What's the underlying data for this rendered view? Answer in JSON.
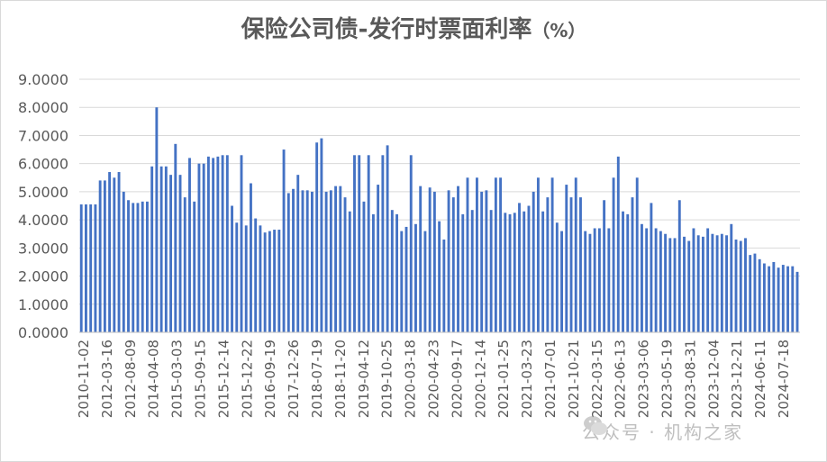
{
  "chart_data": {
    "type": "bar",
    "title": "保险公司债-发行时票面利率",
    "title_unit": "（%）",
    "xlabel": "",
    "ylabel": "",
    "ylim": [
      0,
      9
    ],
    "y_ticks": [
      "9.0000",
      "8.0000",
      "7.0000",
      "6.0000",
      "5.0000",
      "4.0000",
      "3.0000",
      "2.0000",
      "1.0000",
      "0.0000"
    ],
    "x_tick_labels": [
      "2010-11-02",
      "2012-03-16",
      "2012-08-09",
      "2014-04-08",
      "2015-03-03",
      "2015-09-15",
      "2015-12-14",
      "2015-12-22",
      "2016-09-19",
      "2017-12-26",
      "2018-07-19",
      "2018-11-20",
      "2019-04-12",
      "2019-10-25",
      "2020-03-18",
      "2020-04-23",
      "2020-09-17",
      "2020-12-14",
      "2021-01-25",
      "2021-03-23",
      "2021-07-01",
      "2021-10-21",
      "2022-03-15",
      "2022-06-13",
      "2023-03-06",
      "2023-05-19",
      "2023-08-31",
      "2023-12-04",
      "2023-12-21",
      "2024-06-11",
      "2024-07-18"
    ],
    "grid": true,
    "bar_color": "#4472c4",
    "values": [
      4.55,
      4.55,
      4.55,
      4.55,
      5.4,
      5.4,
      5.7,
      5.5,
      5.7,
      5.0,
      4.7,
      4.6,
      4.6,
      4.65,
      4.65,
      5.9,
      8.0,
      5.9,
      5.9,
      5.6,
      6.7,
      5.6,
      4.8,
      6.2,
      4.65,
      6.0,
      6.0,
      6.25,
      6.2,
      6.25,
      6.3,
      6.3,
      4.5,
      3.9,
      6.3,
      3.8,
      5.3,
      4.05,
      3.8,
      3.55,
      3.6,
      3.65,
      3.65,
      6.5,
      4.95,
      5.1,
      5.6,
      5.05,
      5.05,
      5.0,
      6.75,
      6.9,
      5.0,
      5.05,
      5.2,
      5.2,
      4.8,
      4.3,
      6.3,
      6.3,
      4.65,
      6.3,
      4.2,
      5.25,
      6.3,
      6.65,
      4.35,
      4.2,
      3.6,
      3.75,
      6.3,
      3.85,
      5.2,
      3.6,
      5.15,
      5.0,
      3.95,
      3.3,
      5.05,
      4.8,
      5.2,
      4.2,
      5.5,
      4.35,
      5.5,
      5.0,
      5.05,
      4.35,
      5.5,
      5.5,
      4.25,
      4.2,
      4.25,
      4.6,
      4.3,
      4.5,
      5.0,
      5.5,
      4.3,
      4.8,
      5.5,
      3.9,
      3.6,
      5.25,
      4.8,
      5.5,
      4.8,
      3.6,
      3.5,
      3.7,
      3.7,
      4.7,
      3.7,
      5.5,
      6.25,
      4.3,
      4.2,
      4.8,
      5.5,
      3.85,
      3.7,
      4.6,
      3.7,
      3.6,
      3.5,
      3.35,
      3.35,
      4.7,
      3.4,
      3.25,
      3.7,
      3.45,
      3.4,
      3.7,
      3.5,
      3.45,
      3.5,
      3.45,
      3.85,
      3.3,
      3.25,
      3.35,
      2.75,
      2.8,
      2.6,
      2.45,
      2.35,
      2.5,
      2.3,
      2.4,
      2.35,
      2.35,
      2.15
    ]
  },
  "watermark": {
    "text": "公众号 · 机构之家"
  }
}
